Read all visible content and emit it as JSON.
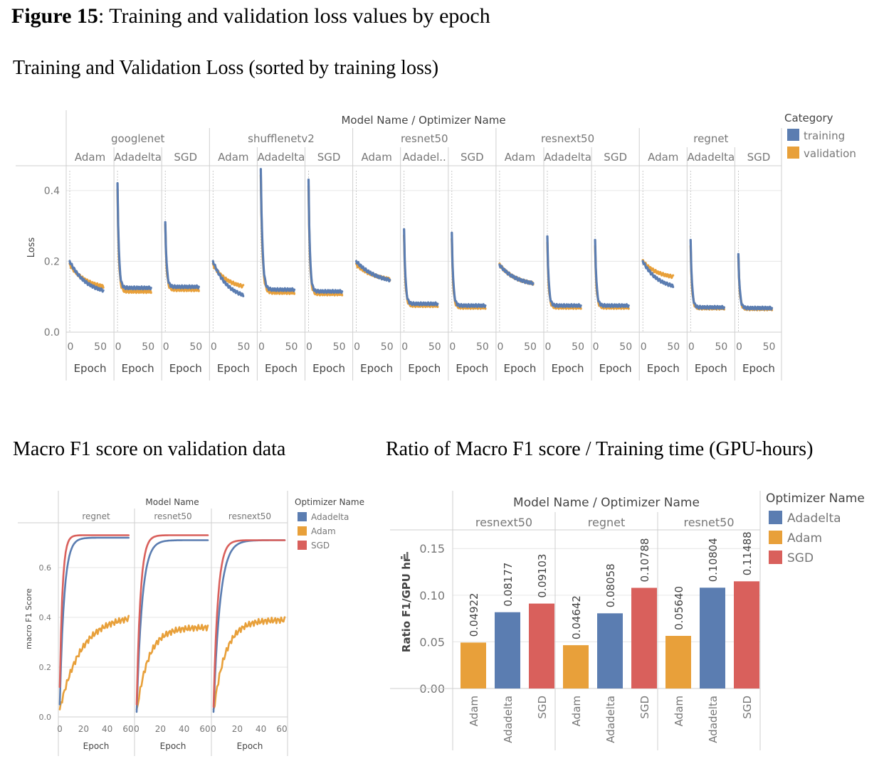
{
  "figure": {
    "label": "Figure 15",
    "caption": ": Training and validation loss values by epoch"
  },
  "sections": {
    "loss_title": "Training and Validation Loss (sorted by training loss)",
    "f1_title": "Macro F1 score on validation data",
    "ratio_title": "Ratio of Macro F1 score / Training time (GPU-hours)"
  },
  "colors": {
    "training": "#5b7db1",
    "validation": "#e8a03a",
    "adadelta": "#5b7db1",
    "adam": "#e8a03a",
    "sgd": "#d9605c"
  },
  "chart_data": [
    {
      "type": "line",
      "header": "Model Name / Optimizer Name",
      "ylabel": "Loss",
      "xlabel": "Epoch",
      "ylim": [
        0,
        0.47
      ],
      "yticks": [
        "0.0",
        "0.2",
        "0.4"
      ],
      "xticks": [
        "0",
        "50"
      ],
      "legend": {
        "title": "Category",
        "entries": [
          "training",
          "validation"
        ],
        "placement": "right"
      },
      "models": [
        {
          "name": "googlenet",
          "panels": [
            {
              "label": "Adam",
              "epochs": 50,
              "train": {
                "start": 0.2,
                "end": 0.105,
                "decay": 0.5
              },
              "val": {
                "start": 0.19,
                "end": 0.12,
                "decay": 0.5
              }
            },
            {
              "label": "Adadelta",
              "epochs": 50,
              "train": {
                "start": 0.42,
                "end": 0.125,
                "decay": 0.04
              },
              "val": {
                "start": 0.4,
                "end": 0.115,
                "decay": 0.04
              }
            },
            {
              "label": "SGD",
              "epochs": 50,
              "train": {
                "start": 0.31,
                "end": 0.128,
                "decay": 0.04
              },
              "val": {
                "start": 0.3,
                "end": 0.12,
                "decay": 0.04
              }
            }
          ]
        },
        {
          "name": "shufflenetv2",
          "panels": [
            {
              "label": "Adam",
              "epochs": 45,
              "train": {
                "start": 0.2,
                "end": 0.09,
                "decay": 0.5
              },
              "val": {
                "start": 0.19,
                "end": 0.12,
                "decay": 0.5
              }
            },
            {
              "label": "Adadelta",
              "epochs": 50,
              "train": {
                "start": 0.46,
                "end": 0.12,
                "decay": 0.05
              },
              "val": {
                "start": 0.44,
                "end": 0.112,
                "decay": 0.05
              }
            },
            {
              "label": "SGD",
              "epochs": 50,
              "train": {
                "start": 0.43,
                "end": 0.115,
                "decay": 0.04
              },
              "val": {
                "start": 0.41,
                "end": 0.108,
                "decay": 0.04
              }
            }
          ]
        },
        {
          "name": "resnet50",
          "panels": [
            {
              "label": "Adam",
              "epochs": 50,
              "train": {
                "start": 0.2,
                "end": 0.135,
                "decay": 0.6
              },
              "val": {
                "start": 0.19,
                "end": 0.14,
                "decay": 0.6
              }
            },
            {
              "label": "Adadel..",
              "epochs": 50,
              "train": {
                "start": 0.29,
                "end": 0.08,
                "decay": 0.04
              },
              "val": {
                "start": 0.27,
                "end": 0.075,
                "decay": 0.04
              }
            },
            {
              "label": "SGD",
              "epochs": 50,
              "train": {
                "start": 0.28,
                "end": 0.075,
                "decay": 0.04
              },
              "val": {
                "start": 0.26,
                "end": 0.07,
                "decay": 0.04
              }
            }
          ]
        },
        {
          "name": "resnext50",
          "panels": [
            {
              "label": "Adam",
              "epochs": 50,
              "train": {
                "start": 0.19,
                "end": 0.13,
                "decay": 0.5
              },
              "val": {
                "start": 0.19,
                "end": 0.13,
                "decay": 0.5
              }
            },
            {
              "label": "Adadelta",
              "epochs": 50,
              "train": {
                "start": 0.27,
                "end": 0.075,
                "decay": 0.04
              },
              "val": {
                "start": 0.25,
                "end": 0.07,
                "decay": 0.04
              }
            },
            {
              "label": "SGD",
              "epochs": 50,
              "train": {
                "start": 0.26,
                "end": 0.075,
                "decay": 0.04
              },
              "val": {
                "start": 0.24,
                "end": 0.07,
                "decay": 0.04
              }
            }
          ]
        },
        {
          "name": "regnet",
          "panels": [
            {
              "label": "Adam",
              "epochs": 45,
              "train": {
                "start": 0.2,
                "end": 0.12,
                "decay": 0.5
              },
              "val": {
                "start": 0.2,
                "end": 0.15,
                "decay": 0.5
              }
            },
            {
              "label": "Adadelta",
              "epochs": 50,
              "train": {
                "start": 0.26,
                "end": 0.07,
                "decay": 0.04
              },
              "val": {
                "start": 0.24,
                "end": 0.068,
                "decay": 0.04
              }
            },
            {
              "label": "SGD",
              "epochs": 50,
              "train": {
                "start": 0.22,
                "end": 0.068,
                "decay": 0.04
              },
              "val": {
                "start": 0.21,
                "end": 0.066,
                "decay": 0.04
              }
            }
          ]
        }
      ]
    },
    {
      "type": "line",
      "header": "Model Name",
      "ylabel": "macro F1 Score",
      "xlabel": "Epoch",
      "ylim": [
        0,
        0.78
      ],
      "yticks": [
        "0.0",
        "0.2",
        "0.4",
        "0.6"
      ],
      "xticks": [
        "0",
        "20",
        "40",
        "60"
      ],
      "legend": {
        "title": "Optimizer Name",
        "entries": [
          "Adadelta",
          "Adam",
          "SGD"
        ],
        "placement": "right"
      },
      "panels": [
        {
          "name": "regnet",
          "epochs": 58,
          "series": {
            "Adadelta": {
              "start": 0.05,
              "end": 0.72,
              "k": 8
            },
            "Adam": {
              "start": 0.03,
              "end": 0.41,
              "k": 40
            },
            "SGD": {
              "start": 0.12,
              "end": 0.73,
              "k": 5
            }
          }
        },
        {
          "name": "resnet50",
          "epochs": 60,
          "series": {
            "Adadelta": {
              "start": 0.02,
              "end": 0.71,
              "k": 10
            },
            "Adam": {
              "start": 0.02,
              "end": 0.36,
              "k": 22
            },
            "SGD": {
              "start": 0.05,
              "end": 0.73,
              "k": 7
            }
          }
        },
        {
          "name": "resnext50",
          "epochs": 60,
          "series": {
            "Adadelta": {
              "start": 0.02,
              "end": 0.71,
              "k": 12
            },
            "Adam": {
              "start": 0.02,
              "end": 0.39,
              "k": 22
            },
            "SGD": {
              "start": 0.04,
              "end": 0.71,
              "k": 8
            }
          }
        }
      ]
    },
    {
      "type": "bar",
      "header": "Model Name / Optimizer Name",
      "ylabel": "Ratio F1/GPU hr",
      "ylim": [
        0,
        0.17
      ],
      "yticks": [
        "0.00",
        "0.05",
        "0.10",
        "0.15"
      ],
      "legend": {
        "title": "Optimizer Name",
        "entries": [
          "Adadelta",
          "Adam",
          "SGD"
        ],
        "placement": "right"
      },
      "groups": [
        {
          "name": "resnext50",
          "bars": [
            {
              "label": "Adam",
              "value": 0.04922,
              "text": "0.04922"
            },
            {
              "label": "Adadelta",
              "value": 0.08177,
              "text": "0.08177"
            },
            {
              "label": "SGD",
              "value": 0.09103,
              "text": "0.09103"
            }
          ]
        },
        {
          "name": "regnet",
          "bars": [
            {
              "label": "Adam",
              "value": 0.04642,
              "text": "0.04642"
            },
            {
              "label": "Adadelta",
              "value": 0.08058,
              "text": "0.08058"
            },
            {
              "label": "SGD",
              "value": 0.10788,
              "text": "0.10788"
            }
          ]
        },
        {
          "name": "resnet50",
          "bars": [
            {
              "label": "Adam",
              "value": 0.0564,
              "text": "0.05640"
            },
            {
              "label": "Adadelta",
              "value": 0.10804,
              "text": "0.10804"
            },
            {
              "label": "SGD",
              "value": 0.11488,
              "text": "0.11488"
            }
          ]
        }
      ]
    }
  ]
}
